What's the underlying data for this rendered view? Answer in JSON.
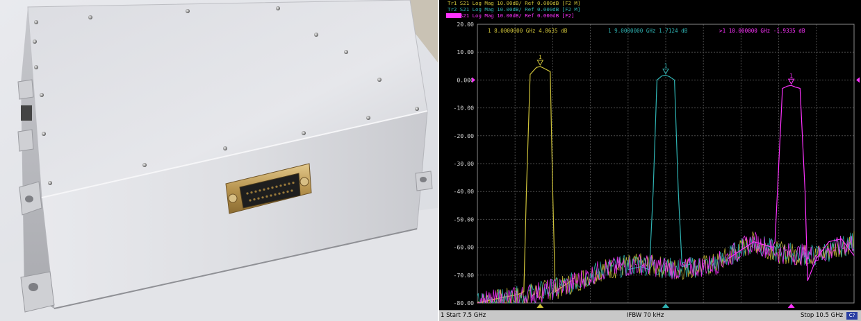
{
  "photo": {
    "subject": "aluminum-enclosure-with-db25-connector"
  },
  "analyzer": {
    "background": "#000000",
    "traces": [
      {
        "id": "Tr1",
        "label": "Tr1 S21 Log Mag 10.00dB/ Ref 0.000dB [F2 M]",
        "color": "#cfc33a"
      },
      {
        "id": "Tr2",
        "label": "Tr2 S21 Log Mag 10.00dB/ Ref 0.000dB [F2 M]",
        "color": "#2fb3b3"
      },
      {
        "id": "Tr3",
        "label": "Tr3 S21 Log Mag 10.00dB/ Ref 0.000dB [F2]",
        "color": "#ff33ff"
      }
    ],
    "markers": [
      {
        "text": "1   8.0000000 GHz  4.8635 dB",
        "color": "#cfc33a"
      },
      {
        "text": "1   9.0000000 GHz  1.7124 dB",
        "color": "#2fb3b3"
      },
      {
        "text": ">1  10.000000 GHz -1.9335 dB",
        "color": "#ff33ff"
      }
    ],
    "status": {
      "start": "1  Start 7.5 GHz",
      "ifbw": "IFBW 70 kHz",
      "stop": "Stop 10.5 GHz",
      "badge": "C?"
    }
  },
  "chart_data": {
    "type": "line",
    "title": "",
    "xlabel": "",
    "ylabel": "",
    "xlim": [
      7.5,
      10.5
    ],
    "ylim": [
      -80,
      20
    ],
    "yticks": [
      20,
      10,
      0,
      -10,
      -20,
      -30,
      -40,
      -50,
      -60,
      -70,
      -80
    ],
    "ytick_labels": [
      "20.00",
      "10.00",
      "0.000",
      "-10.00",
      "-20.00",
      "-30.00",
      "-40.00",
      "-50.00",
      "-60.00",
      "-70.00",
      "-80.00"
    ],
    "grid": true,
    "series": [
      {
        "name": "Tr1",
        "color": "#cfc33a",
        "x": [
          7.5,
          7.6,
          7.7,
          7.82,
          7.87,
          7.89,
          7.92,
          7.97,
          8.0,
          8.03,
          8.08,
          8.1,
          8.12,
          8.15,
          8.25
        ],
        "y": [
          -80,
          -79,
          -78,
          -77,
          -76,
          -40,
          2,
          4.5,
          4.86,
          4.2,
          3,
          -40,
          -76,
          -75,
          -72
        ]
      },
      {
        "name": "Tr2",
        "color": "#2fb3b3",
        "x": [
          8.7,
          8.8,
          8.87,
          8.9,
          8.93,
          8.97,
          9.0,
          9.03,
          9.07,
          9.1,
          9.13,
          9.2
        ],
        "y": [
          -68,
          -67,
          -68,
          -40,
          0,
          1.5,
          1.71,
          1.2,
          0,
          -40,
          -67,
          -66
        ]
      },
      {
        "name": "Tr3",
        "color": "#ff33ff",
        "x": [
          9.5,
          9.7,
          9.85,
          9.87,
          9.93,
          9.97,
          10.0,
          10.03,
          10.07,
          10.11,
          10.13,
          10.2,
          10.3,
          10.4,
          10.5
        ],
        "y": [
          -64,
          -58,
          -60,
          -58,
          -3,
          -2.2,
          -1.93,
          -2.5,
          -3,
          -40,
          -72,
          -64,
          -58,
          -57,
          -63
        ]
      }
    ],
    "noise_floor": {
      "note_x": [
        7.5,
        7.8,
        8.2,
        8.5,
        8.8,
        9.1,
        9.4,
        9.7,
        9.9,
        10.2,
        10.5
      ],
      "y": [
        -80,
        -78,
        -74,
        -68,
        -66,
        -68,
        -66,
        -58,
        -62,
        -63,
        -58
      ]
    },
    "marker_triangles_x": [
      8.0,
      9.0,
      10.0
    ]
  }
}
